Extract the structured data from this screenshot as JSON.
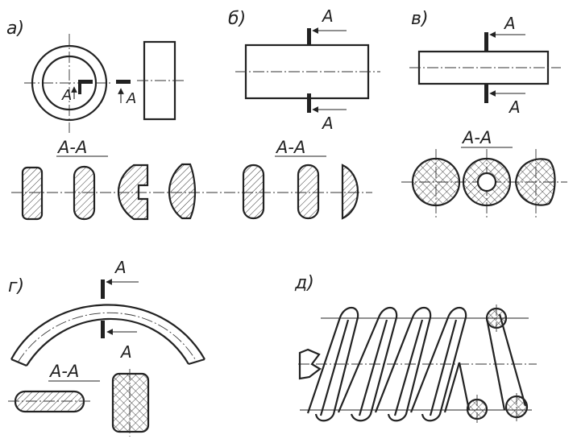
{
  "labels": {
    "a": "а)",
    "b": "б)",
    "v": "в)",
    "g": "г)",
    "d": "д)",
    "A": "А",
    "section": "А-А"
  },
  "colors": {
    "ink": "#222222",
    "paper": "#ffffff"
  }
}
